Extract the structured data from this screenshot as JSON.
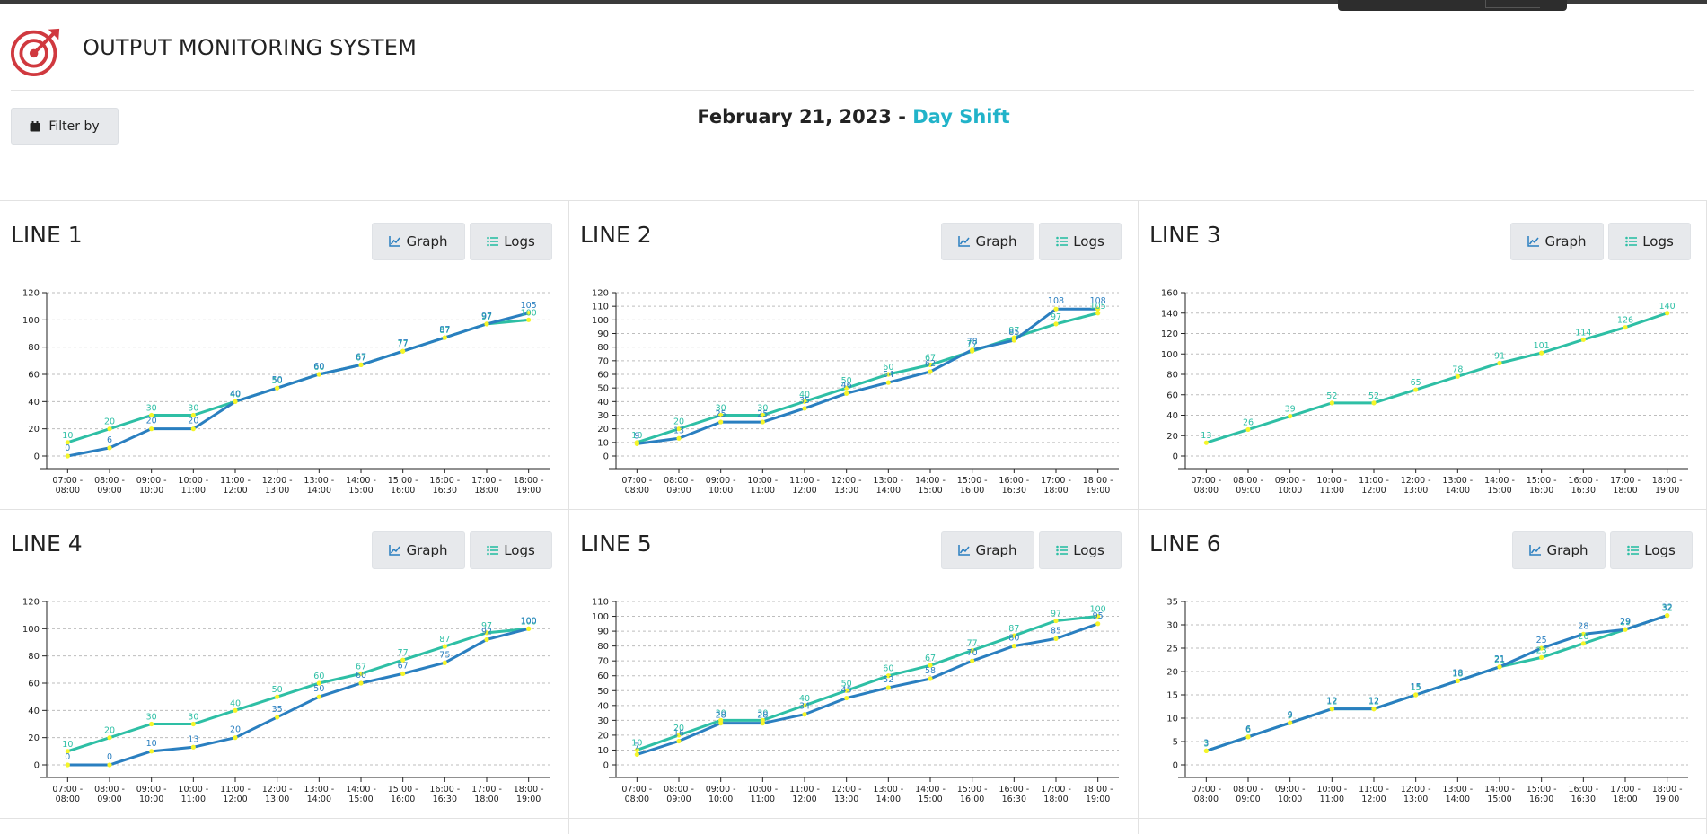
{
  "app": {
    "title": "OUTPUT MONITORING SYSTEM",
    "logo_icon": "target-logo-icon"
  },
  "filter": {
    "label": "Filter by",
    "icon": "calendar-icon"
  },
  "date": {
    "date_text": "February 21, 2023 -",
    "shift_text": "Day Shift",
    "shift_color": "#21b3c9"
  },
  "buttons": {
    "graph_label": "Graph",
    "logs_label": "Logs"
  },
  "colors": {
    "target": "#2ebfa5",
    "actual": "#2a7fc0",
    "point": "#f5f52a"
  },
  "time_slots": [
    "07:00 -|08:00",
    "08:00 -|09:00",
    "09:00 -|10:00",
    "10:00 -|11:00",
    "11:00 -|12:00",
    "12:00 -|13:00",
    "13:00 -|14:00",
    "14:00 -|15:00",
    "15:00 -|16:00",
    "16:00 -|16:30",
    "17:00 -|18:00",
    "18:00 -|19:00"
  ],
  "lines": [
    {
      "name": "LINE 1",
      "ylim": [
        0,
        120
      ],
      "ytick": 20,
      "target": [
        10,
        20,
        30,
        30,
        40,
        50,
        60,
        67,
        77,
        87,
        97,
        100
      ],
      "actual": [
        0,
        6,
        20,
        20,
        40,
        50,
        60,
        67,
        77,
        87,
        97,
        105
      ]
    },
    {
      "name": "LINE 2",
      "ylim": [
        0,
        120
      ],
      "ytick": 10,
      "target": [
        10,
        20,
        30,
        30,
        40,
        50,
        60,
        67,
        77,
        87,
        97,
        105
      ],
      "actual": [
        9,
        13,
        25,
        25,
        35,
        46,
        54,
        62,
        78,
        85,
        108,
        108
      ]
    },
    {
      "name": "LINE 3",
      "ylim": [
        0,
        160
      ],
      "ytick": 20,
      "target": [
        13,
        26,
        39,
        52,
        52,
        65,
        78,
        91,
        101,
        114,
        126,
        140
      ],
      "actual": null
    },
    {
      "name": "LINE 4",
      "ylim": [
        0,
        120
      ],
      "ytick": 20,
      "target": [
        10,
        20,
        30,
        30,
        40,
        50,
        60,
        67,
        77,
        87,
        97,
        100
      ],
      "actual": [
        0,
        0,
        10,
        13,
        20,
        35,
        50,
        60,
        67,
        75,
        92,
        100
      ]
    },
    {
      "name": "LINE 5",
      "ylim": [
        0,
        110
      ],
      "ytick": 10,
      "target": [
        10,
        20,
        30,
        30,
        40,
        50,
        60,
        67,
        77,
        87,
        97,
        100
      ],
      "actual": [
        7,
        16,
        28,
        28,
        34,
        45,
        52,
        58,
        70,
        80,
        85,
        95
      ]
    },
    {
      "name": "LINE 6",
      "ylim": [
        0,
        35
      ],
      "ytick": 5,
      "target": [
        3,
        6,
        9,
        12,
        12,
        15,
        18,
        21,
        23,
        26,
        29,
        32
      ],
      "actual": [
        3,
        6,
        9,
        12,
        12,
        15,
        18,
        21,
        25,
        28,
        29,
        32
      ]
    }
  ]
}
